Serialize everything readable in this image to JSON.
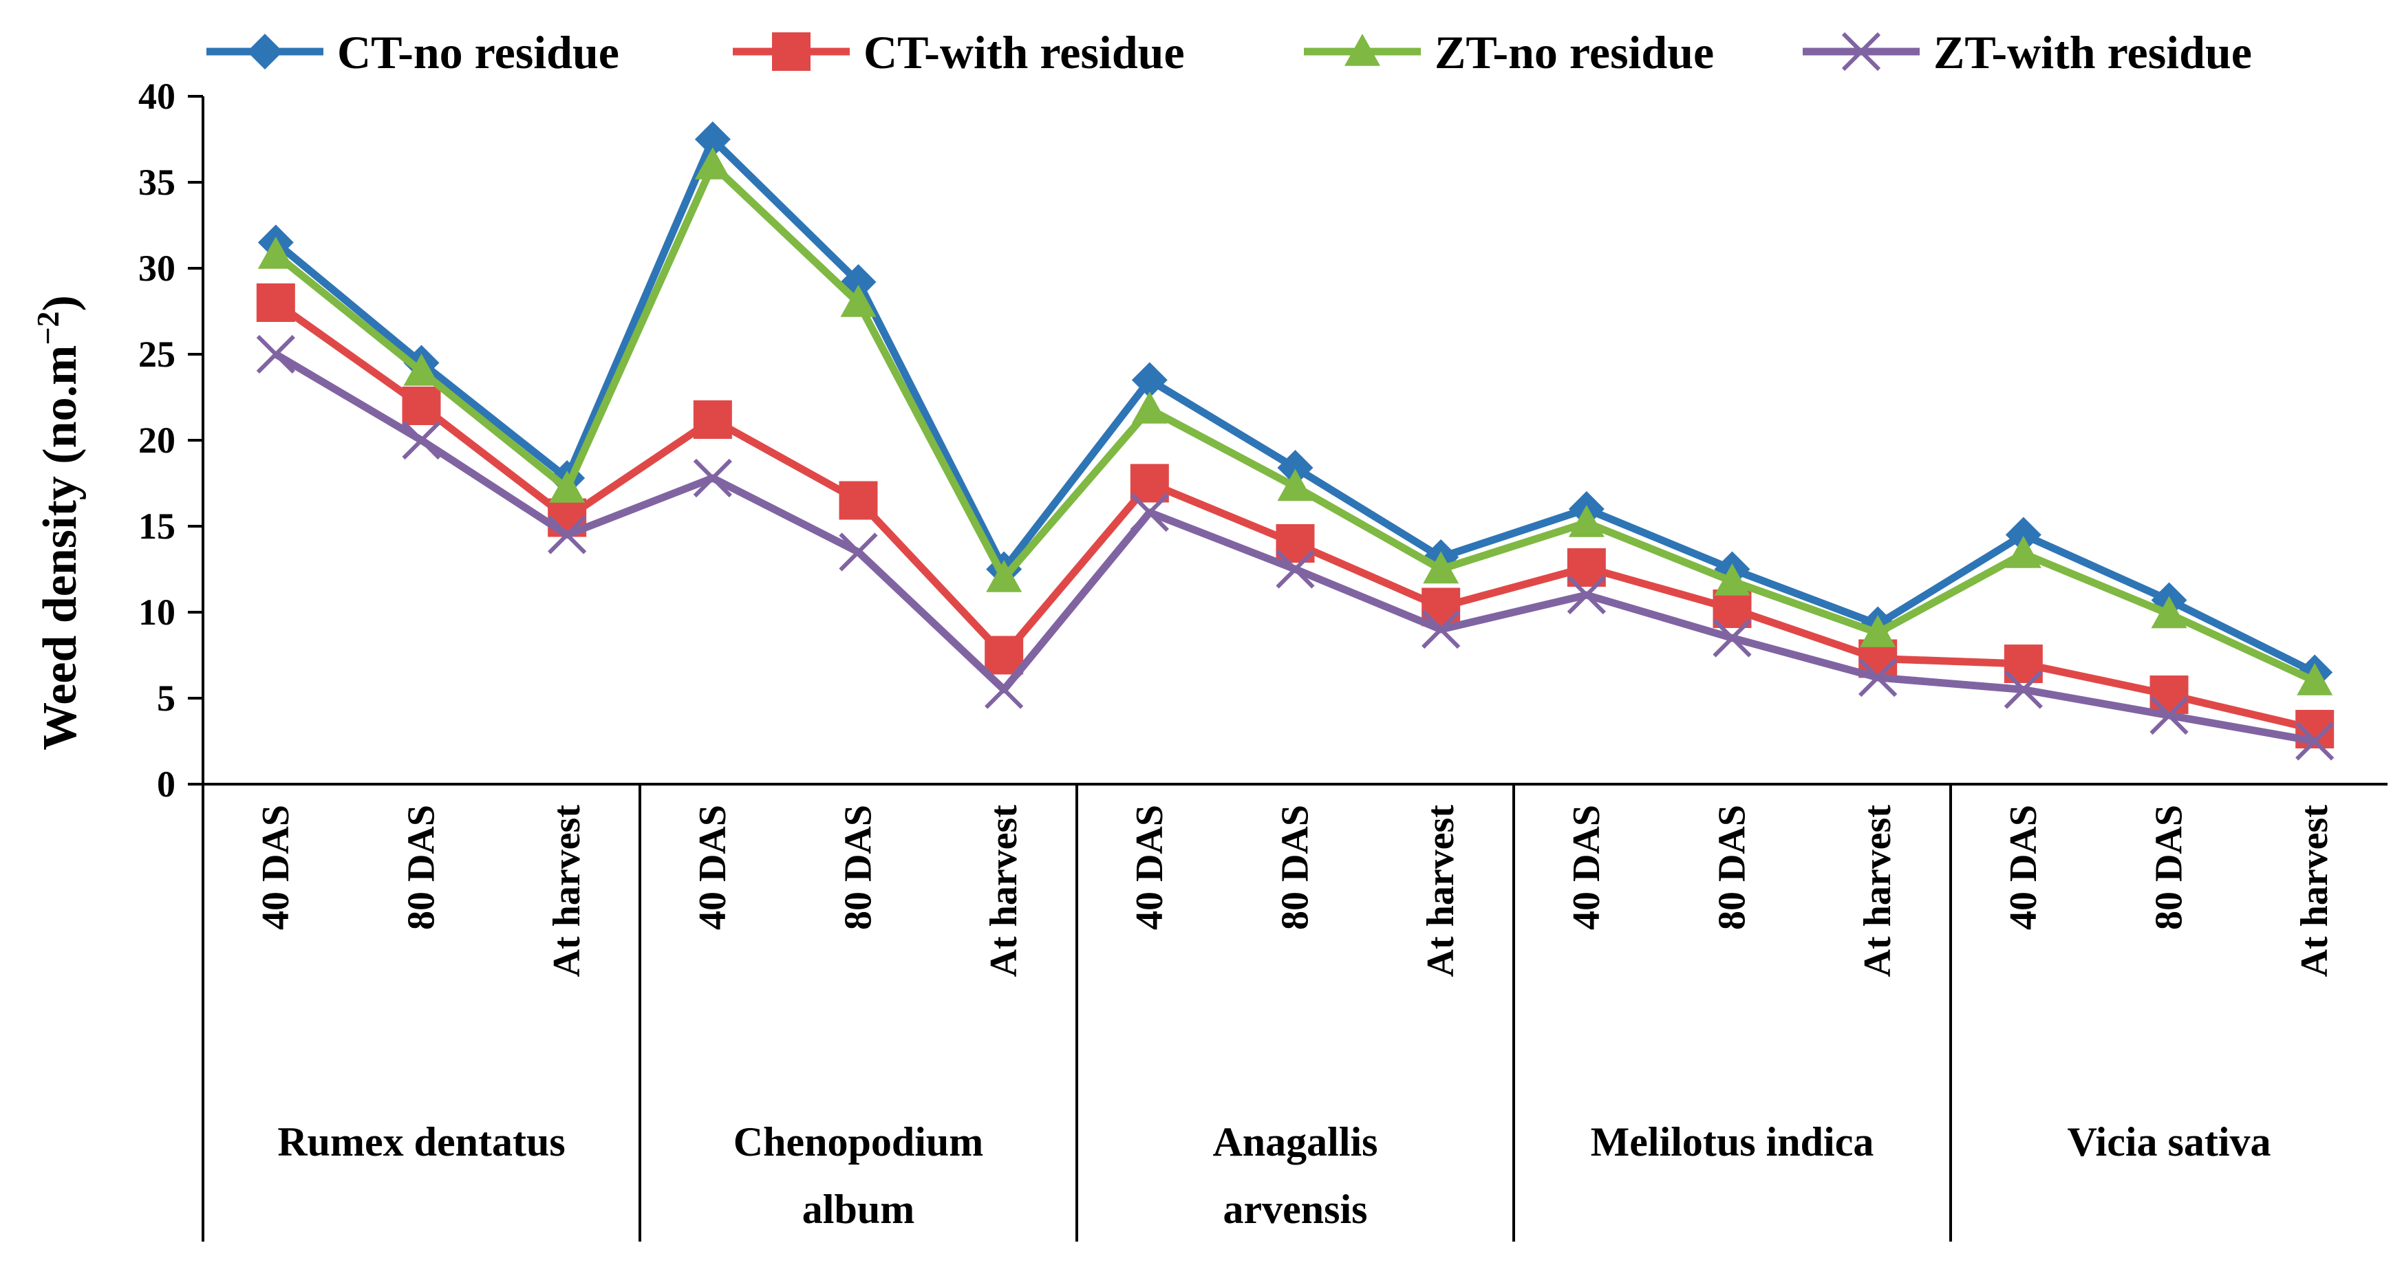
{
  "chart_data": {
    "type": "line",
    "title": "",
    "xlabel": "",
    "ylabel": "Weed density (no.m",
    "ylabel_sup": "−2",
    "ylabel_close": ")",
    "ylim": [
      0,
      40
    ],
    "yticks": [
      0,
      5,
      10,
      15,
      20,
      25,
      30,
      35,
      40
    ],
    "legend_position": "top",
    "groups": [
      {
        "lines": [
          "Rumex dentatus"
        ]
      },
      {
        "lines": [
          "Chenopodium",
          "album"
        ]
      },
      {
        "lines": [
          "Anagallis",
          "arvensis"
        ]
      },
      {
        "lines": [
          "Melilotus indica"
        ]
      },
      {
        "lines": [
          "Vicia sativa"
        ]
      }
    ],
    "categories": [
      "40 DAS",
      "80 DAS",
      "At harvest",
      "40 DAS",
      "80 DAS",
      "At harvest",
      "40 DAS",
      "80 DAS",
      "At harvest",
      "40 DAS",
      "80 DAS",
      "At harvest",
      "40 DAS",
      "80 DAS",
      "At harvest"
    ],
    "series": [
      {
        "name": "CT-no residue",
        "color": "#2E75B6",
        "marker": "diamond",
        "values": [
          31.5,
          24.5,
          17.8,
          37.5,
          29.2,
          12.5,
          23.5,
          18.4,
          13.2,
          16.0,
          12.5,
          9.3,
          14.5,
          10.7,
          6.5
        ]
      },
      {
        "name": "CT-with residue",
        "color": "#E04848",
        "marker": "square",
        "values": [
          28.0,
          22.0,
          15.5,
          21.2,
          16.5,
          7.5,
          17.5,
          14.0,
          10.3,
          12.6,
          10.2,
          7.3,
          7.0,
          5.2,
          3.2
        ]
      },
      {
        "name": "ZT-no residue",
        "color": "#7FB843",
        "marker": "triangle",
        "values": [
          30.8,
          24.0,
          17.2,
          36.0,
          28.0,
          12.0,
          21.8,
          17.3,
          12.5,
          15.2,
          11.8,
          8.8,
          13.4,
          9.9,
          6.0
        ]
      },
      {
        "name": "ZT-with residue",
        "color": "#8064A2",
        "marker": "x",
        "values": [
          25.0,
          20.0,
          14.5,
          17.8,
          13.5,
          5.5,
          15.8,
          12.5,
          9.0,
          11.0,
          8.5,
          6.2,
          5.5,
          4.0,
          2.5
        ]
      }
    ]
  }
}
